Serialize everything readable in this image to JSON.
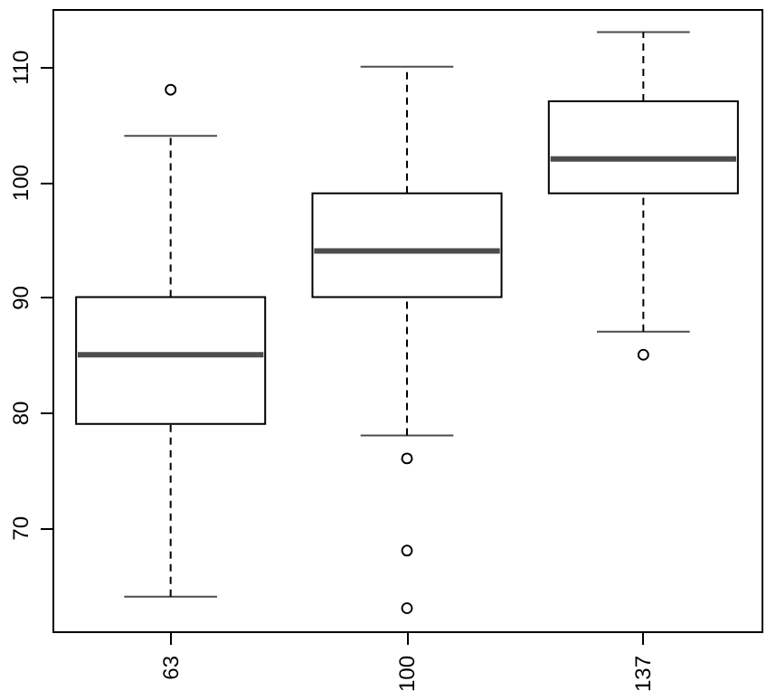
{
  "chart_data": {
    "type": "box",
    "categories": [
      "63",
      "100",
      "137"
    ],
    "boxes": [
      {
        "low": 64,
        "q1": 79,
        "median": 85,
        "q3": 90,
        "high": 104,
        "outliers": [
          108
        ]
      },
      {
        "low": 78,
        "q1": 90,
        "median": 94,
        "q3": 99,
        "high": 110,
        "outliers": [
          76,
          68,
          63
        ]
      },
      {
        "low": 87,
        "q1": 99,
        "median": 102,
        "q3": 107,
        "high": 113,
        "outliers": [
          85
        ]
      }
    ],
    "ylim": [
      61,
      115
    ],
    "yticks": [
      70,
      80,
      90,
      100,
      110
    ],
    "grid": false,
    "line_style": "dashed"
  }
}
